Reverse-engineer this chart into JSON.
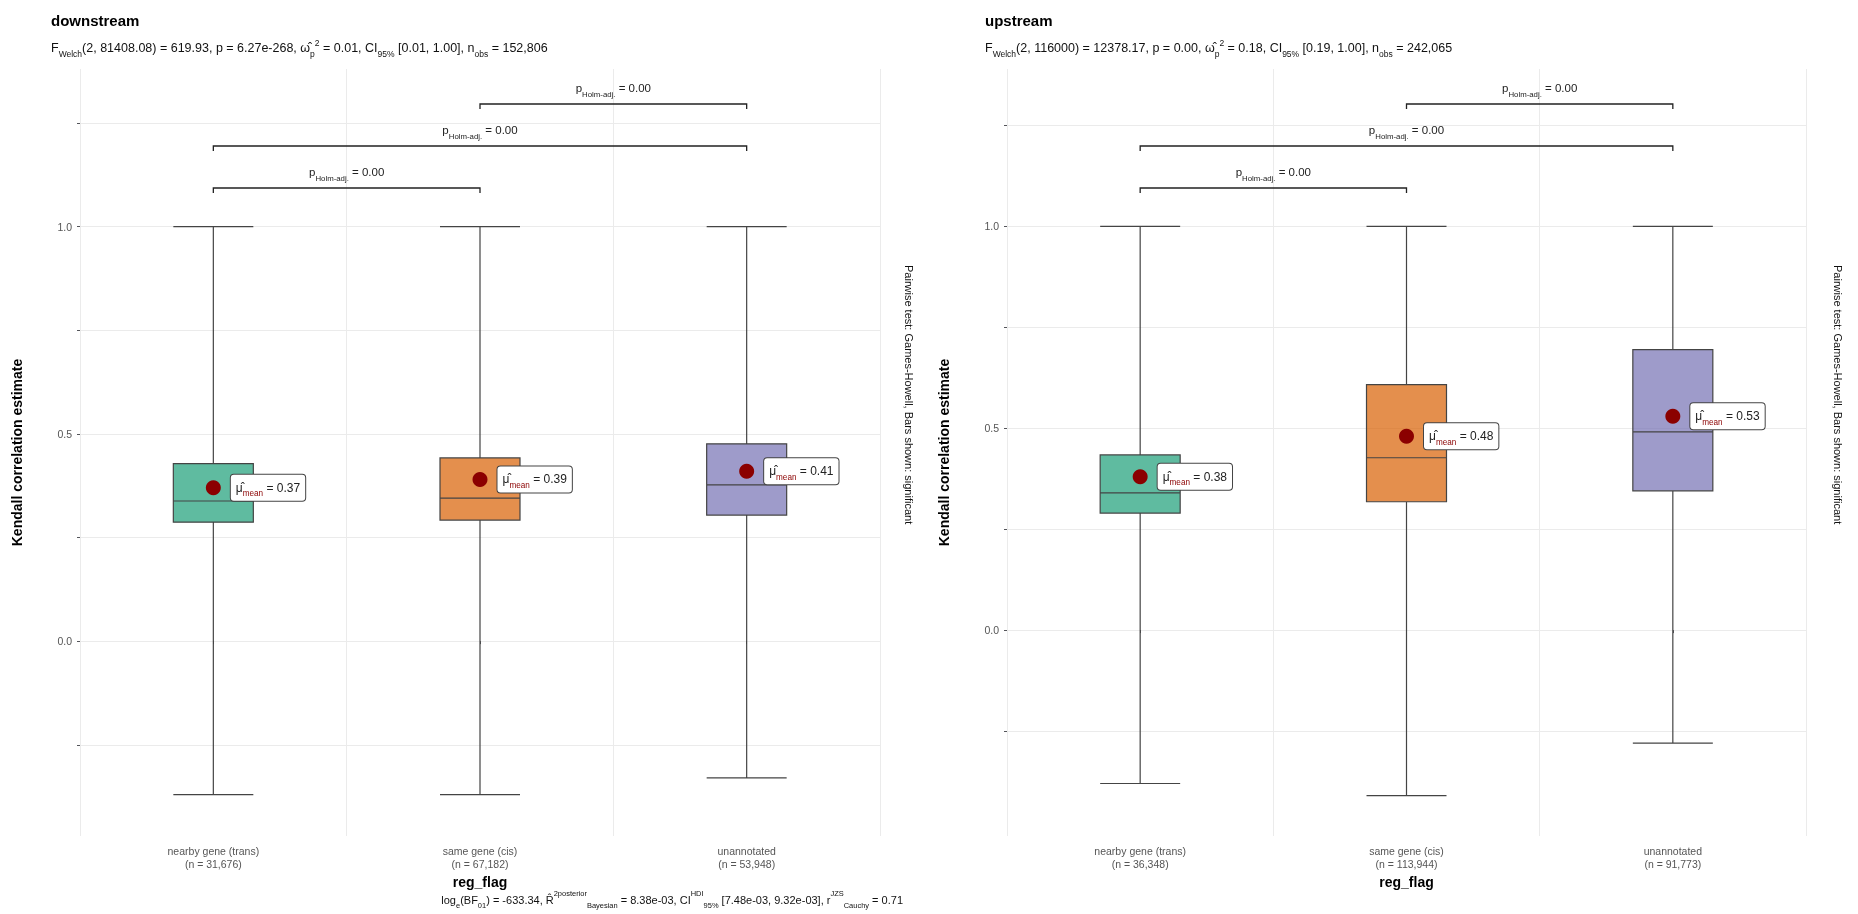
{
  "chart_data": [
    {
      "type": "box",
      "title": "downstream",
      "subtitle": "F$_{Welch}$(2, 81408.08) = 619.93, p = 6.27e-268, ω̂$_{p}$$^{2}$ = 0.01, CI$_{95%}$ [0.01, 1.00], n$_{obs}$ = 152,806",
      "xlabel": "reg_flag",
      "ylabel": "Kendall correlation estimate",
      "y2label": "Pairwise test: Games-Howell, Bars shown: significant",
      "categories": [
        "nearby gene (trans)\n(n = 31,676)",
        "same gene (cis)\n(n = 67,182)",
        "unannotated\n(n = 53,948)"
      ],
      "colors": [
        "#1b9e77",
        "#d95f02",
        "#7570b3"
      ],
      "boxes": [
        {
          "low": -0.37,
          "q1": 0.287,
          "median": 0.338,
          "q3": 0.428,
          "high": 1.0
        },
        {
          "low": -0.37,
          "q1": 0.292,
          "median": 0.345,
          "q3": 0.442,
          "high": 1.0
        },
        {
          "low": -0.33,
          "q1": 0.304,
          "median": 0.377,
          "q3": 0.476,
          "high": 1.0
        }
      ],
      "series": [
        {
          "type": "scatter",
          "color": "#8b0000",
          "x": [
            "nearby gene (trans)\n(n = 31,676)",
            "same gene (cis)\n(n = 67,182)",
            "unannotated\n(n = 53,948)"
          ],
          "values": [
            0.37,
            0.39,
            0.41
          ],
          "value_labels": [
            "μ̂$_{mean}$ = 0.37",
            "μ̂$_{mean}$ = 0.39",
            "μ̂$_{mean}$ = 0.41"
          ]
        }
      ],
      "ylim": [
        -0.47,
        1.38
      ],
      "yticks": [
        {
          "value": -0.25,
          "label": null
        },
        {
          "value": 0,
          "label": "0.0"
        },
        {
          "value": 0.25,
          "label": null
        },
        {
          "value": 0.5,
          "label": "0.5"
        },
        {
          "value": 0.75,
          "label": null
        },
        {
          "value": 1,
          "label": "1.0"
        },
        {
          "value": 1.25,
          "label": null
        }
      ],
      "grid": true,
      "annotations": [
        "p$_{Holm-adj.}$ = 0.00",
        "p$_{Holm-adj.}$ = 0.00",
        "p$_{Holm-adj.}$ = 0.00",
        "log$_{e}$(BF$_{01}$) = -633.34, R̂$^{2}$$^{posterior}$$_{Bayesian}$ = 8.38e-03, CI$^{HDI}$$_{95%}$ [7.48e-03, 9.32e-03], r$^{JZS}$$_{Cauchy}$ = 0.71"
      ]
    },
    {
      "type": "box",
      "title": "upstream",
      "subtitle": "F$_{Welch}$(2, 116000) = 12378.17, p = 0.00, ω̂$_{p}$$^{2}$ = 0.18, CI$_{95%}$ [0.19, 1.00], n$_{obs}$ = 242,065",
      "xlabel": "reg_flag",
      "ylabel": "Kendall correlation estimate",
      "y2label": "Pairwise test: Games-Howell, Bars shown: significant",
      "categories": [
        "nearby gene (trans)\n(n = 36,348)",
        "same gene (cis)\n(n = 113,944)",
        "unannotated\n(n = 91,773)"
      ],
      "colors": [
        "#1b9e77",
        "#d95f02",
        "#7570b3"
      ],
      "boxes": [
        {
          "low": -0.38,
          "q1": 0.29,
          "median": 0.34,
          "q3": 0.434,
          "high": 1.0
        },
        {
          "low": -0.41,
          "q1": 0.318,
          "median": 0.427,
          "q3": 0.608,
          "high": 1.0
        },
        {
          "low": -0.28,
          "q1": 0.345,
          "median": 0.491,
          "q3": 0.695,
          "high": 1.0
        }
      ],
      "series": [
        {
          "type": "scatter",
          "color": "#8b0000",
          "x": [
            "nearby gene (trans)\n(n = 36,348)",
            "same gene (cis)\n(n = 113,944)",
            "unannotated\n(n = 91,773)"
          ],
          "values": [
            0.38,
            0.48,
            0.53
          ],
          "value_labels": [
            "μ̂$_{mean}$ = 0.38",
            "μ̂$_{mean}$ = 0.48",
            "μ̂$_{mean}$ = 0.53"
          ]
        }
      ],
      "ylim": [
        -0.51,
        1.39
      ],
      "yticks": [
        {
          "value": -0.25,
          "label": null
        },
        {
          "value": 0,
          "label": "0.0"
        },
        {
          "value": 0.25,
          "label": null
        },
        {
          "value": 0.5,
          "label": "0.5"
        },
        {
          "value": 0.75,
          "label": null
        },
        {
          "value": 1,
          "label": "1.0"
        },
        {
          "value": 1.25,
          "label": null
        }
      ],
      "grid": true,
      "annotations": [
        "p$_{Holm-adj.}$ = 0.00",
        "p$_{Holm-adj.}$ = 0.00",
        "p$_{Holm-adj.}$ = 0.00"
      ]
    }
  ]
}
